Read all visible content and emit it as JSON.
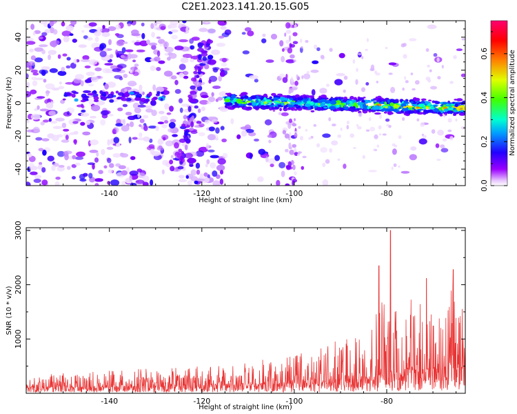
{
  "chart_data": [
    {
      "type": "heatmap",
      "title": "C2E1.2023.141.20.15.G05",
      "xlabel": "Height of straight line (km)",
      "ylabel": "Frequency (Hz)",
      "xlim": [
        -158,
        -63
      ],
      "ylim": [
        -50,
        50
      ],
      "x_ticks": [
        -140,
        -120,
        -100,
        -80
      ],
      "y_ticks": [
        -40,
        -20,
        0,
        20,
        40
      ],
      "colorbar": {
        "label": "Normalized spectral amplitude",
        "range": [
          0,
          0.75
        ],
        "ticks": [
          "0.0",
          "0.2",
          "0.4",
          "0.6"
        ],
        "colormap": "gist_rainbow (purple-blue-cyan-green-yellow-red)"
      },
      "description_features": {
        "diffuse_noise_region_km": [
          -158,
          -115
        ],
        "strong_band_start_km": -115,
        "band_center_frequency_hz": [
          1,
          -3
        ],
        "band_halfwidth_hz": 4
      },
      "grid": false
    },
    {
      "type": "line",
      "xlabel": "Height of straight line (km)",
      "ylabel": "SNR (10 * v/v)",
      "xlim": [
        -158,
        -63
      ],
      "ylim": [
        0,
        3050
      ],
      "x_ticks": [
        -140,
        -120,
        -100,
        -80
      ],
      "y_ticks": [
        1000,
        2000,
        3000
      ],
      "series_color": "#e83434",
      "envelope": {
        "x": [
          -158,
          -140,
          -120,
          -110,
          -100,
          -95,
          -90,
          -85,
          -82,
          -80,
          -78,
          -75,
          -70,
          -66,
          -63
        ],
        "baseline": [
          100,
          120,
          150,
          160,
          180,
          190,
          200,
          260,
          320,
          400,
          380,
          420,
          450,
          460,
          480
        ],
        "amplitude": [
          220,
          320,
          350,
          480,
          550,
          650,
          800,
          900,
          1200,
          1500,
          1600,
          1300,
          1400,
          1500,
          1200
        ]
      },
      "peaks": [
        {
          "x": -79.2,
          "y": 3000
        },
        {
          "x": -65.6,
          "y": 2280
        },
        {
          "x": -71.4,
          "y": 2120
        },
        {
          "x": -81.7,
          "y": 2350
        }
      ],
      "grid": false
    }
  ]
}
